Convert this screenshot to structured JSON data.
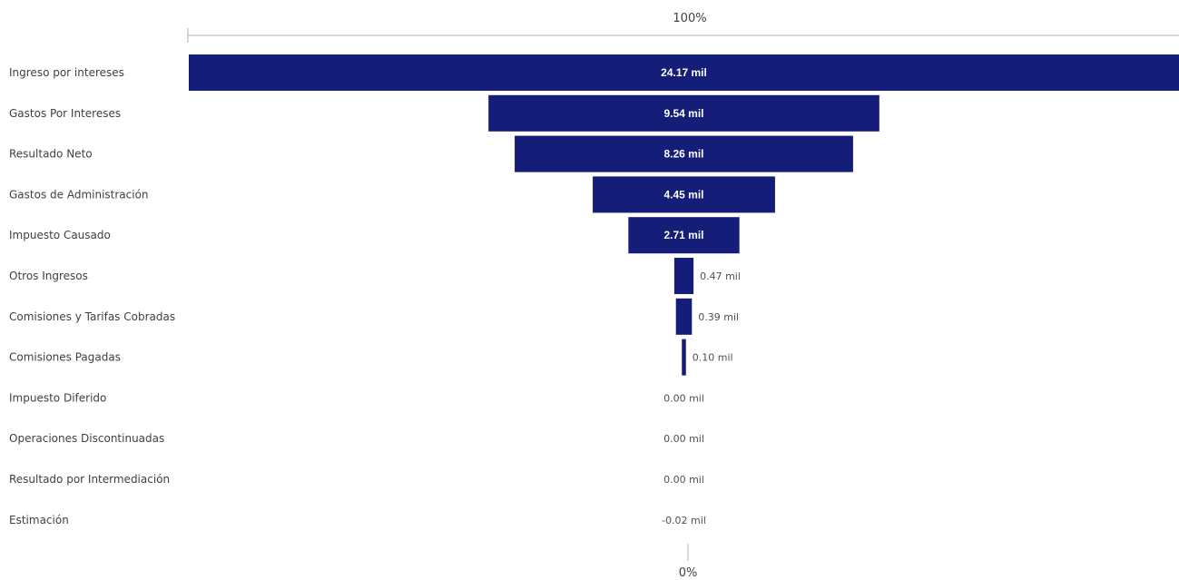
{
  "chart_data": {
    "type": "funnel",
    "unit_suffix": "mil",
    "top_label": "100%",
    "bottom_label": "0%",
    "categories": [
      "Ingreso por intereses",
      "Gastos Por Intereses",
      "Resultado Neto",
      "Gastos de Administración",
      "Impuesto Causado",
      "Otros Ingresos",
      "Comisiones y Tarifas Cobradas",
      "Comisiones Pagadas",
      "Impuesto Diferido",
      "Operaciones Discontinuadas",
      "Resultado por Intermediación",
      "Estimación"
    ],
    "values": [
      24.17,
      9.54,
      8.26,
      4.45,
      2.71,
      0.47,
      0.39,
      0.1,
      0.0,
      0.0,
      0.0,
      -0.02
    ],
    "value_labels": [
      "24.17 mil",
      "9.54 mil",
      "8.26 mil",
      "4.45 mil",
      "2.71 mil",
      "0.47 mil",
      "0.39 mil",
      "0.10 mil",
      "0.00 mil",
      "0.00 mil",
      "0.00 mil",
      "-0.02 mil"
    ],
    "bar_color": "#141e78",
    "label_color_inside": "#ffffff",
    "label_color_outside": "#505050",
    "category_label_color": "#404040",
    "axis_color": "#b0b0b0"
  }
}
